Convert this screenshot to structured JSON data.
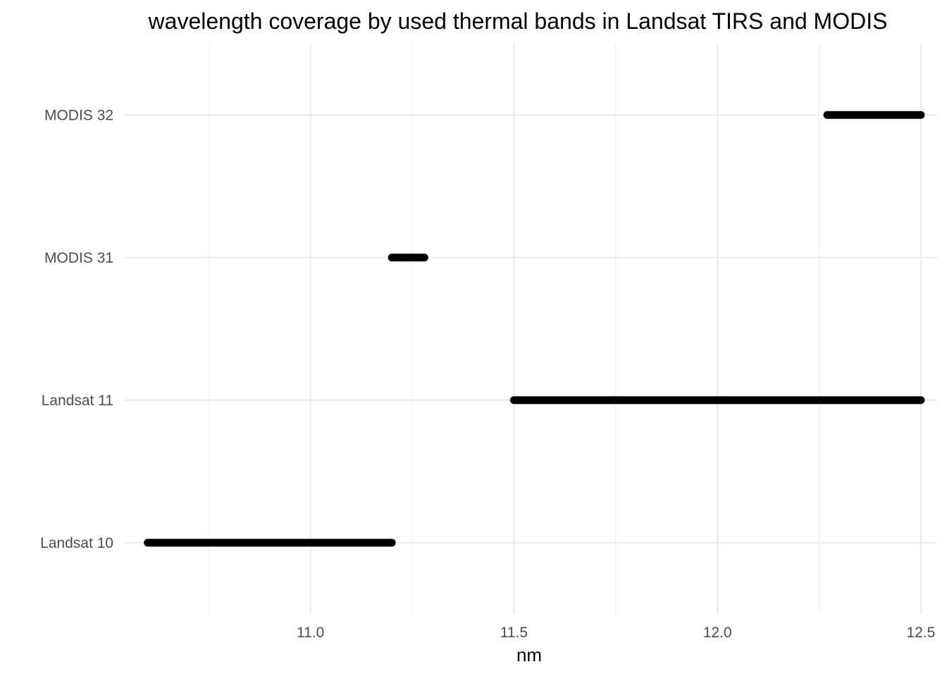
{
  "chart_data": {
    "type": "segment",
    "title": "wavelength coverage by used thermal bands in Landsat TIRS and MODIS",
    "xlabel": "nm",
    "ylabel": "",
    "xlim": [
      10.54,
      12.54
    ],
    "x_ticks": [
      11.0,
      11.5,
      12.0,
      12.5
    ],
    "x_tick_labels": [
      "11.0",
      "11.5",
      "12.0",
      "12.5"
    ],
    "x_minor_ticks": [
      10.75,
      11.25,
      11.75,
      12.25
    ],
    "categories": [
      "Landsat 10",
      "Landsat 11",
      "MODIS 31",
      "MODIS 32"
    ],
    "segments": [
      {
        "band": "Landsat 10",
        "start": 10.6,
        "end": 11.2
      },
      {
        "band": "Landsat 11",
        "start": 11.5,
        "end": 12.5
      },
      {
        "band": "MODIS 31",
        "start": 11.2,
        "end": 11.28
      },
      {
        "band": "MODIS 32",
        "start": 12.27,
        "end": 12.5
      }
    ],
    "grid": true,
    "legend": "none",
    "segment_color": "#000000"
  }
}
